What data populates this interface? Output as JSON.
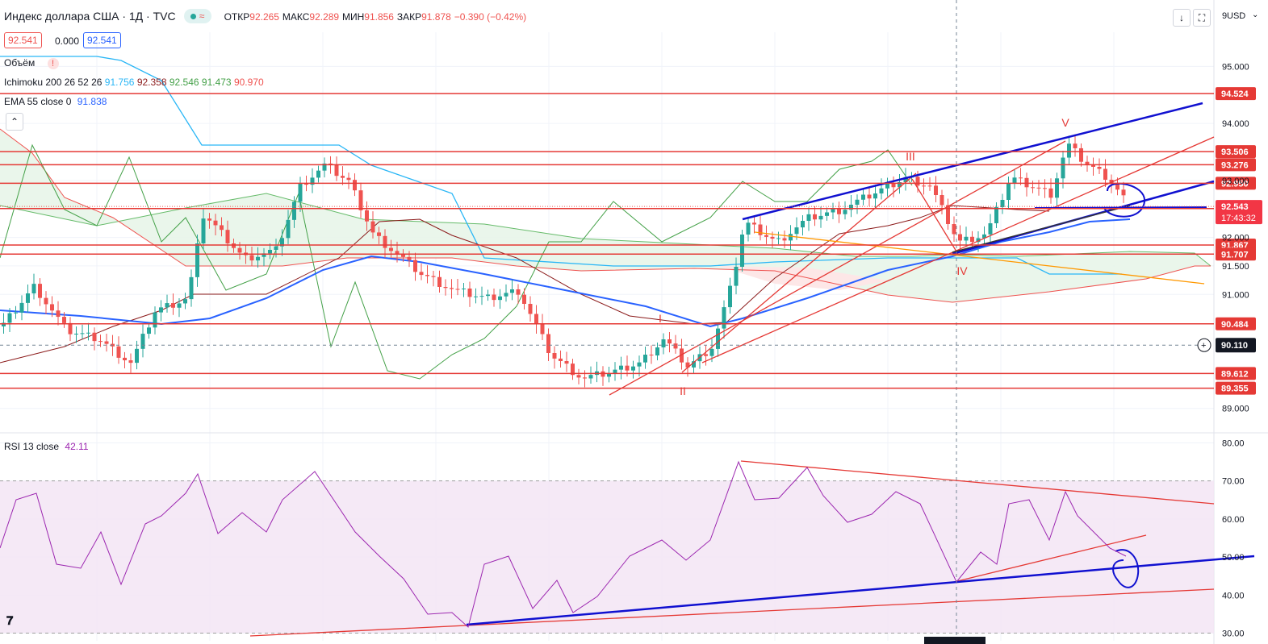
{
  "header": {
    "symbol": "Индекс доллара США · 1Д · TVC",
    "open_label": "ОТКР",
    "open": "92.265",
    "high_label": "МАКС",
    "high": "92.289",
    "low_label": "МИН",
    "low": "91.856",
    "close_label": "ЗАКР",
    "close": "91.878",
    "change": "−0.390 (−0.42%)",
    "bid": "92.541",
    "spread": "0.000",
    "ask": "92.541",
    "currency": "USD",
    "axis_top_partial": "9"
  },
  "legend": {
    "volume": "Объём",
    "ichimoku_label": "Ichimoku 200 26 52 26",
    "ichimoku_values": [
      "91.756",
      "92.358",
      "92.546",
      "91.473",
      "90.970"
    ],
    "ema_label": "EMA 55 close 0",
    "ema_value": "91.838",
    "rsi_label": "RSI 13 close",
    "rsi_value": "42.11"
  },
  "colors": {
    "up": "#26a69a",
    "down": "#ef5350",
    "level": "#e53935",
    "ema": "#2962ff",
    "tenkan": "#29b6f6",
    "kijun": "#8b1a1a",
    "chikou": "#43a047",
    "cloud": "#e8f5e9",
    "rsi": "#9c27b0",
    "trend_blue": "#1010d0",
    "trend_orange": "#ff9800"
  },
  "chart_data": [
    {
      "type": "candlestick",
      "title": "Индекс доллара США · 1Д · TVC",
      "ylim": [
        88.6,
        95.6
      ],
      "y_ticks": [
        "95.000",
        "94.000",
        "93.000",
        "92.000",
        "91.500",
        "91.000",
        "89.000"
      ],
      "horizontal_levels": [
        94.524,
        93.506,
        93.276,
        92.95,
        92.507,
        91.867,
        91.707,
        90.484,
        89.612,
        89.355
      ],
      "level_labels": [
        "94.524",
        "93.506",
        "93.276",
        "92.950",
        "92.507",
        "91.867",
        "91.707",
        "90.484",
        "89.612",
        "89.355"
      ],
      "current_price": "92.543",
      "countdown": "17:43:32",
      "crosshair_price": "90.110",
      "wave_labels": [
        "I",
        "II",
        "III",
        "IV",
        "V"
      ],
      "grid": true
    },
    {
      "type": "line",
      "title": "RSI 13 close",
      "ylim": [
        28,
        82
      ],
      "y_ticks": [
        "80.00",
        "70.00",
        "60.00",
        "50.00",
        "40.00",
        "30.00"
      ],
      "band": [
        30,
        70
      ],
      "last_value": 42.11,
      "grid": true
    }
  ]
}
